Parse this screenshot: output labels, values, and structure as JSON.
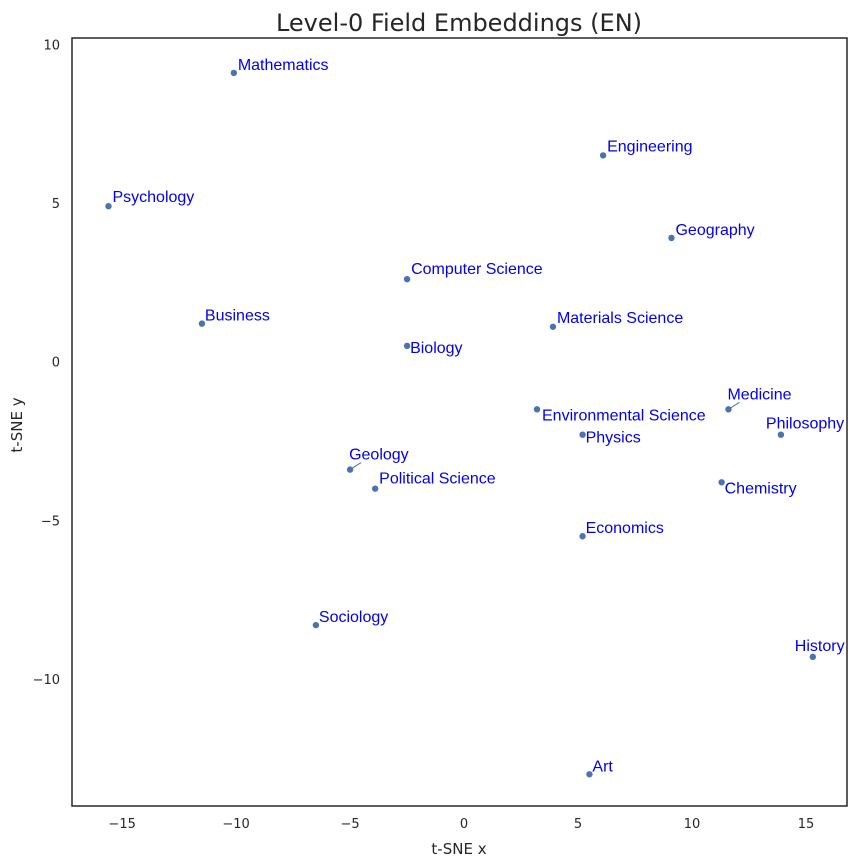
{
  "chart_data": {
    "type": "scatter",
    "title": "Level-0 Field Embeddings (EN)",
    "xlabel": "t-SNE x",
    "ylabel": "t-SNE y",
    "xlim": [
      -17.2,
      16.8
    ],
    "ylim": [
      -14.0,
      10.2
    ],
    "xticks": [
      -15,
      -10,
      -5,
      0,
      5,
      10,
      15
    ],
    "yticks": [
      10,
      5,
      0,
      -5,
      -10
    ],
    "xtick_labels": [
      "−15",
      "−10",
      "−5",
      "0",
      "5",
      "10",
      "15"
    ],
    "ytick_labels": [
      "10",
      "5",
      "0",
      "−5",
      "−10"
    ],
    "grid": false,
    "legend": "none",
    "marker_color": "#4c72b0",
    "label_color": "#0000ee",
    "points": [
      {
        "label": "Mathematics",
        "x": -10.1,
        "y": 9.1
      },
      {
        "label": "Engineering",
        "x": 6.1,
        "y": 6.5
      },
      {
        "label": "Psychology",
        "x": -15.6,
        "y": 4.9
      },
      {
        "label": "Geography",
        "x": 9.1,
        "y": 3.9
      },
      {
        "label": "Computer Science",
        "x": -2.5,
        "y": 2.6
      },
      {
        "label": "Business",
        "x": -11.5,
        "y": 1.2
      },
      {
        "label": "Materials Science",
        "x": 3.9,
        "y": 1.1
      },
      {
        "label": "Biology",
        "x": -2.5,
        "y": 0.5
      },
      {
        "label": "Medicine",
        "x": 11.6,
        "y": -1.5
      },
      {
        "label": "Environmental Science",
        "x": 3.2,
        "y": -1.5
      },
      {
        "label": "Physics",
        "x": 5.2,
        "y": -2.3
      },
      {
        "label": "Philosophy",
        "x": 13.9,
        "y": -2.3
      },
      {
        "label": "Geology",
        "x": -5.0,
        "y": -3.4
      },
      {
        "label": "Political Science",
        "x": -3.9,
        "y": -4.0
      },
      {
        "label": "Chemistry",
        "x": 11.3,
        "y": -3.8
      },
      {
        "label": "Economics",
        "x": 5.2,
        "y": -5.5
      },
      {
        "label": "Sociology",
        "x": -6.5,
        "y": -8.3
      },
      {
        "label": "History",
        "x": 15.3,
        "y": -9.3
      },
      {
        "label": "Art",
        "x": 5.5,
        "y": -13.0
      }
    ]
  }
}
